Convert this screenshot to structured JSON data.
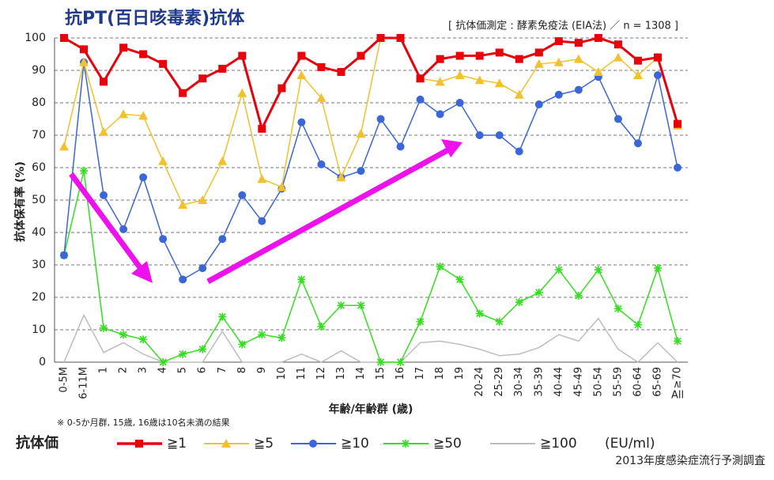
{
  "chart_data": {
    "type": "line",
    "title": "抗PT(百日咳毒素)抗体",
    "subtitle": "[ 抗体価測定 : 酵素免疫法 (EIA法) ／ n = 1308 ]",
    "y_label": "抗体保有率 (%)",
    "x_label": "年齢/年齢群 (歳)",
    "note": "※ 0-5か月群, 15歳, 16歳は10名未満の結果",
    "legend_title": "抗体価",
    "legend_unit": "(EU/ml)",
    "source": "2013年度感染症流行予測調査",
    "categories": [
      "0-5M",
      "6-11M",
      "1",
      "2",
      "3",
      "4",
      "5",
      "6",
      "7",
      "8",
      "9",
      "10",
      "11",
      "12",
      "13",
      "14",
      "15",
      "16",
      "17",
      "18",
      "19",
      "20-24",
      "25-29",
      "30-34",
      "35-39",
      "40-44",
      "45-49",
      "50-54",
      "55-59",
      "60-64",
      "65-69",
      "≥70"
    ],
    "last_category_extra_label": "All",
    "ylim": [
      0,
      100
    ],
    "yticks": [
      0,
      10,
      20,
      30,
      40,
      50,
      60,
      70,
      80,
      90,
      100
    ],
    "grid": true,
    "series": [
      {
        "name": "≧1",
        "color": "#e8000b",
        "marker": "square",
        "width": 3,
        "values": [
          100,
          96.5,
          86.5,
          97,
          95,
          92,
          83,
          87.5,
          90.5,
          94.5,
          72,
          84.5,
          94.5,
          91,
          89.5,
          94.5,
          100,
          100,
          87.5,
          93.5,
          94.5,
          94.5,
          95.5,
          93.5,
          95.5,
          99,
          98.5,
          100,
          98,
          93,
          94,
          73.5
        ]
      },
      {
        "name": "≧5",
        "color": "#f2c12e",
        "marker": "triangle",
        "width": 1.5,
        "values": [
          66.5,
          92.5,
          71,
          76.5,
          76,
          62,
          48.5,
          50,
          62,
          83,
          56.5,
          54,
          88.5,
          81.5,
          57,
          70.5,
          100,
          100,
          87.5,
          86.5,
          88.5,
          87,
          86,
          82.5,
          92,
          92.5,
          93.5,
          89.5,
          94,
          88.5,
          94,
          73
        ]
      },
      {
        "name": "≧10",
        "color": "#3a66d8",
        "marker": "circle",
        "width": 1.5,
        "values": [
          33,
          92.5,
          51.5,
          41,
          57,
          38,
          25.5,
          29,
          38,
          51.5,
          43.5,
          53.5,
          74,
          61,
          57,
          59,
          75,
          66.5,
          81,
          76.5,
          80,
          70,
          70,
          65,
          79.5,
          82.5,
          84,
          88,
          75,
          67.5,
          88.5,
          60
        ]
      },
      {
        "name": "≧50",
        "color": "#33e01f",
        "marker": "asterisk",
        "width": 1.5,
        "values": [
          33,
          59,
          10.5,
          8.5,
          7,
          0,
          2.5,
          4,
          14,
          5.5,
          8.5,
          7.5,
          25.5,
          11,
          17.5,
          17.5,
          0,
          0,
          12.5,
          29.5,
          25.5,
          15,
          12.5,
          18.5,
          21.5,
          28.5,
          20.5,
          28.5,
          16.5,
          11.5,
          29,
          6.5
        ]
      },
      {
        "name": "≧100",
        "color": "#bdbdbd",
        "marker": "none",
        "width": 1.5,
        "values": [
          0,
          14.5,
          3,
          6,
          2.5,
          0,
          0,
          0,
          9.5,
          0,
          0,
          0,
          2.5,
          0,
          3.5,
          0,
          0,
          0,
          6,
          6.5,
          5.5,
          4,
          2,
          2.5,
          4.5,
          8.5,
          6.5,
          13.5,
          4,
          0,
          6,
          0
        ]
      }
    ]
  }
}
